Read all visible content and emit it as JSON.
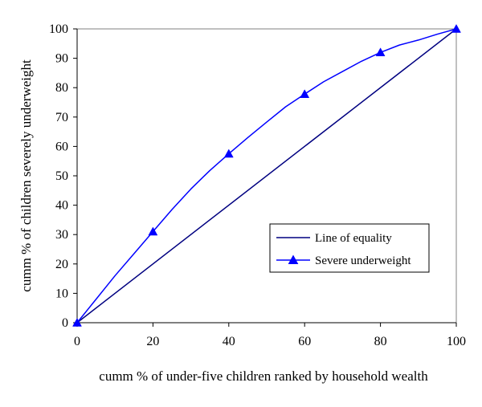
{
  "chart_data": {
    "type": "line",
    "title": "",
    "xlabel": "cumm % of under-five children ranked by household wealth",
    "ylabel": "cumm % of children severely underweight",
    "xlim": [
      0,
      100
    ],
    "ylim": [
      0,
      100
    ],
    "xticks": [
      0,
      20,
      40,
      60,
      80,
      100
    ],
    "yticks": [
      0,
      10,
      20,
      30,
      40,
      50,
      60,
      70,
      80,
      90,
      100
    ],
    "grid": false,
    "legend_position": "center-right",
    "series": [
      {
        "name": "Line of equality",
        "color": "#000080",
        "marker": "none",
        "x": [
          0,
          100
        ],
        "y": [
          0,
          100
        ]
      },
      {
        "name": "Severe underweight",
        "color": "#0000ff",
        "marker": "triangle",
        "x": [
          0,
          5,
          10,
          15,
          20,
          25,
          30,
          35,
          40,
          45,
          50,
          55,
          60,
          65,
          70,
          75,
          80,
          85,
          90,
          95,
          100
        ],
        "y": [
          0,
          8,
          16,
          23.5,
          31,
          38.5,
          45.5,
          51.8,
          57.5,
          63,
          68.3,
          73.5,
          77.8,
          82,
          85.5,
          89,
          92,
          94.5,
          96.2,
          98.2,
          100
        ],
        "marker_x": [
          0,
          20,
          40,
          60,
          80,
          100
        ],
        "marker_y": [
          0,
          31,
          57.5,
          77.8,
          92,
          100
        ]
      }
    ]
  }
}
